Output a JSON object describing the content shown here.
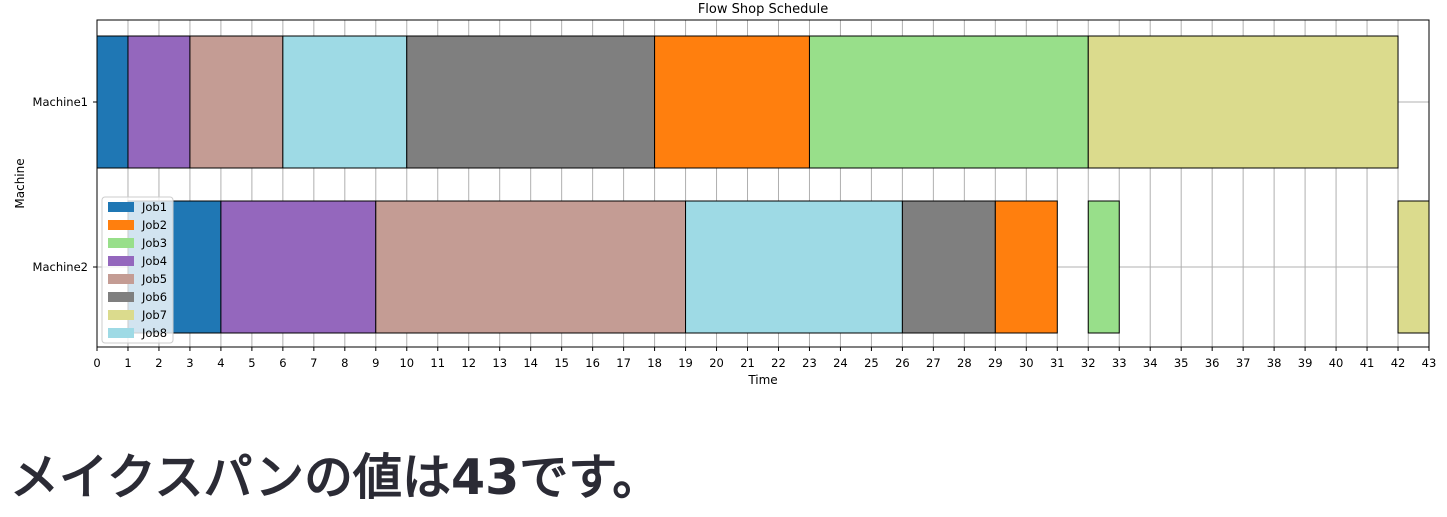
{
  "chart_data": {
    "type": "gantt",
    "title": "Flow Shop Schedule",
    "xlabel": "Time",
    "ylabel": "Machine",
    "xlim": [
      0,
      43
    ],
    "x_ticks": [
      0,
      1,
      2,
      3,
      4,
      5,
      6,
      7,
      8,
      9,
      10,
      11,
      12,
      13,
      14,
      15,
      16,
      17,
      18,
      19,
      20,
      21,
      22,
      23,
      24,
      25,
      26,
      27,
      28,
      29,
      30,
      31,
      32,
      33,
      34,
      35,
      36,
      37,
      38,
      39,
      40,
      41,
      42,
      43
    ],
    "grid": true,
    "legend_position": "lower-left",
    "machines": [
      "Machine1",
      "Machine2"
    ],
    "jobs": [
      {
        "name": "Job1",
        "color": "#1f77b4"
      },
      {
        "name": "Job2",
        "color": "#ff7f0e"
      },
      {
        "name": "Job3",
        "color": "#98df8a"
      },
      {
        "name": "Job4",
        "color": "#9467bd"
      },
      {
        "name": "Job5",
        "color": "#c49c94"
      },
      {
        "name": "Job6",
        "color": "#7f7f7f"
      },
      {
        "name": "Job7",
        "color": "#dbdb8d"
      },
      {
        "name": "Job8",
        "color": "#9edae5"
      }
    ],
    "tasks": [
      {
        "machine": "Machine1",
        "job": "Job1",
        "start": 0,
        "end": 1
      },
      {
        "machine": "Machine1",
        "job": "Job4",
        "start": 1,
        "end": 3
      },
      {
        "machine": "Machine1",
        "job": "Job5",
        "start": 3,
        "end": 6
      },
      {
        "machine": "Machine1",
        "job": "Job8",
        "start": 6,
        "end": 10
      },
      {
        "machine": "Machine1",
        "job": "Job6",
        "start": 10,
        "end": 18
      },
      {
        "machine": "Machine1",
        "job": "Job2",
        "start": 18,
        "end": 23
      },
      {
        "machine": "Machine1",
        "job": "Job3",
        "start": 23,
        "end": 32
      },
      {
        "machine": "Machine1",
        "job": "Job7",
        "start": 32,
        "end": 42
      },
      {
        "machine": "Machine2",
        "job": "Job1",
        "start": 1,
        "end": 4
      },
      {
        "machine": "Machine2",
        "job": "Job4",
        "start": 4,
        "end": 9
      },
      {
        "machine": "Machine2",
        "job": "Job5",
        "start": 9,
        "end": 19
      },
      {
        "machine": "Machine2",
        "job": "Job8",
        "start": 19,
        "end": 26
      },
      {
        "machine": "Machine2",
        "job": "Job6",
        "start": 26,
        "end": 29
      },
      {
        "machine": "Machine2",
        "job": "Job2",
        "start": 29,
        "end": 31
      },
      {
        "machine": "Machine2",
        "job": "Job3",
        "start": 32,
        "end": 33
      },
      {
        "machine": "Machine2",
        "job": "Job7",
        "start": 42,
        "end": 43
      }
    ]
  },
  "result_text": "メイクスパンの値は43です。"
}
